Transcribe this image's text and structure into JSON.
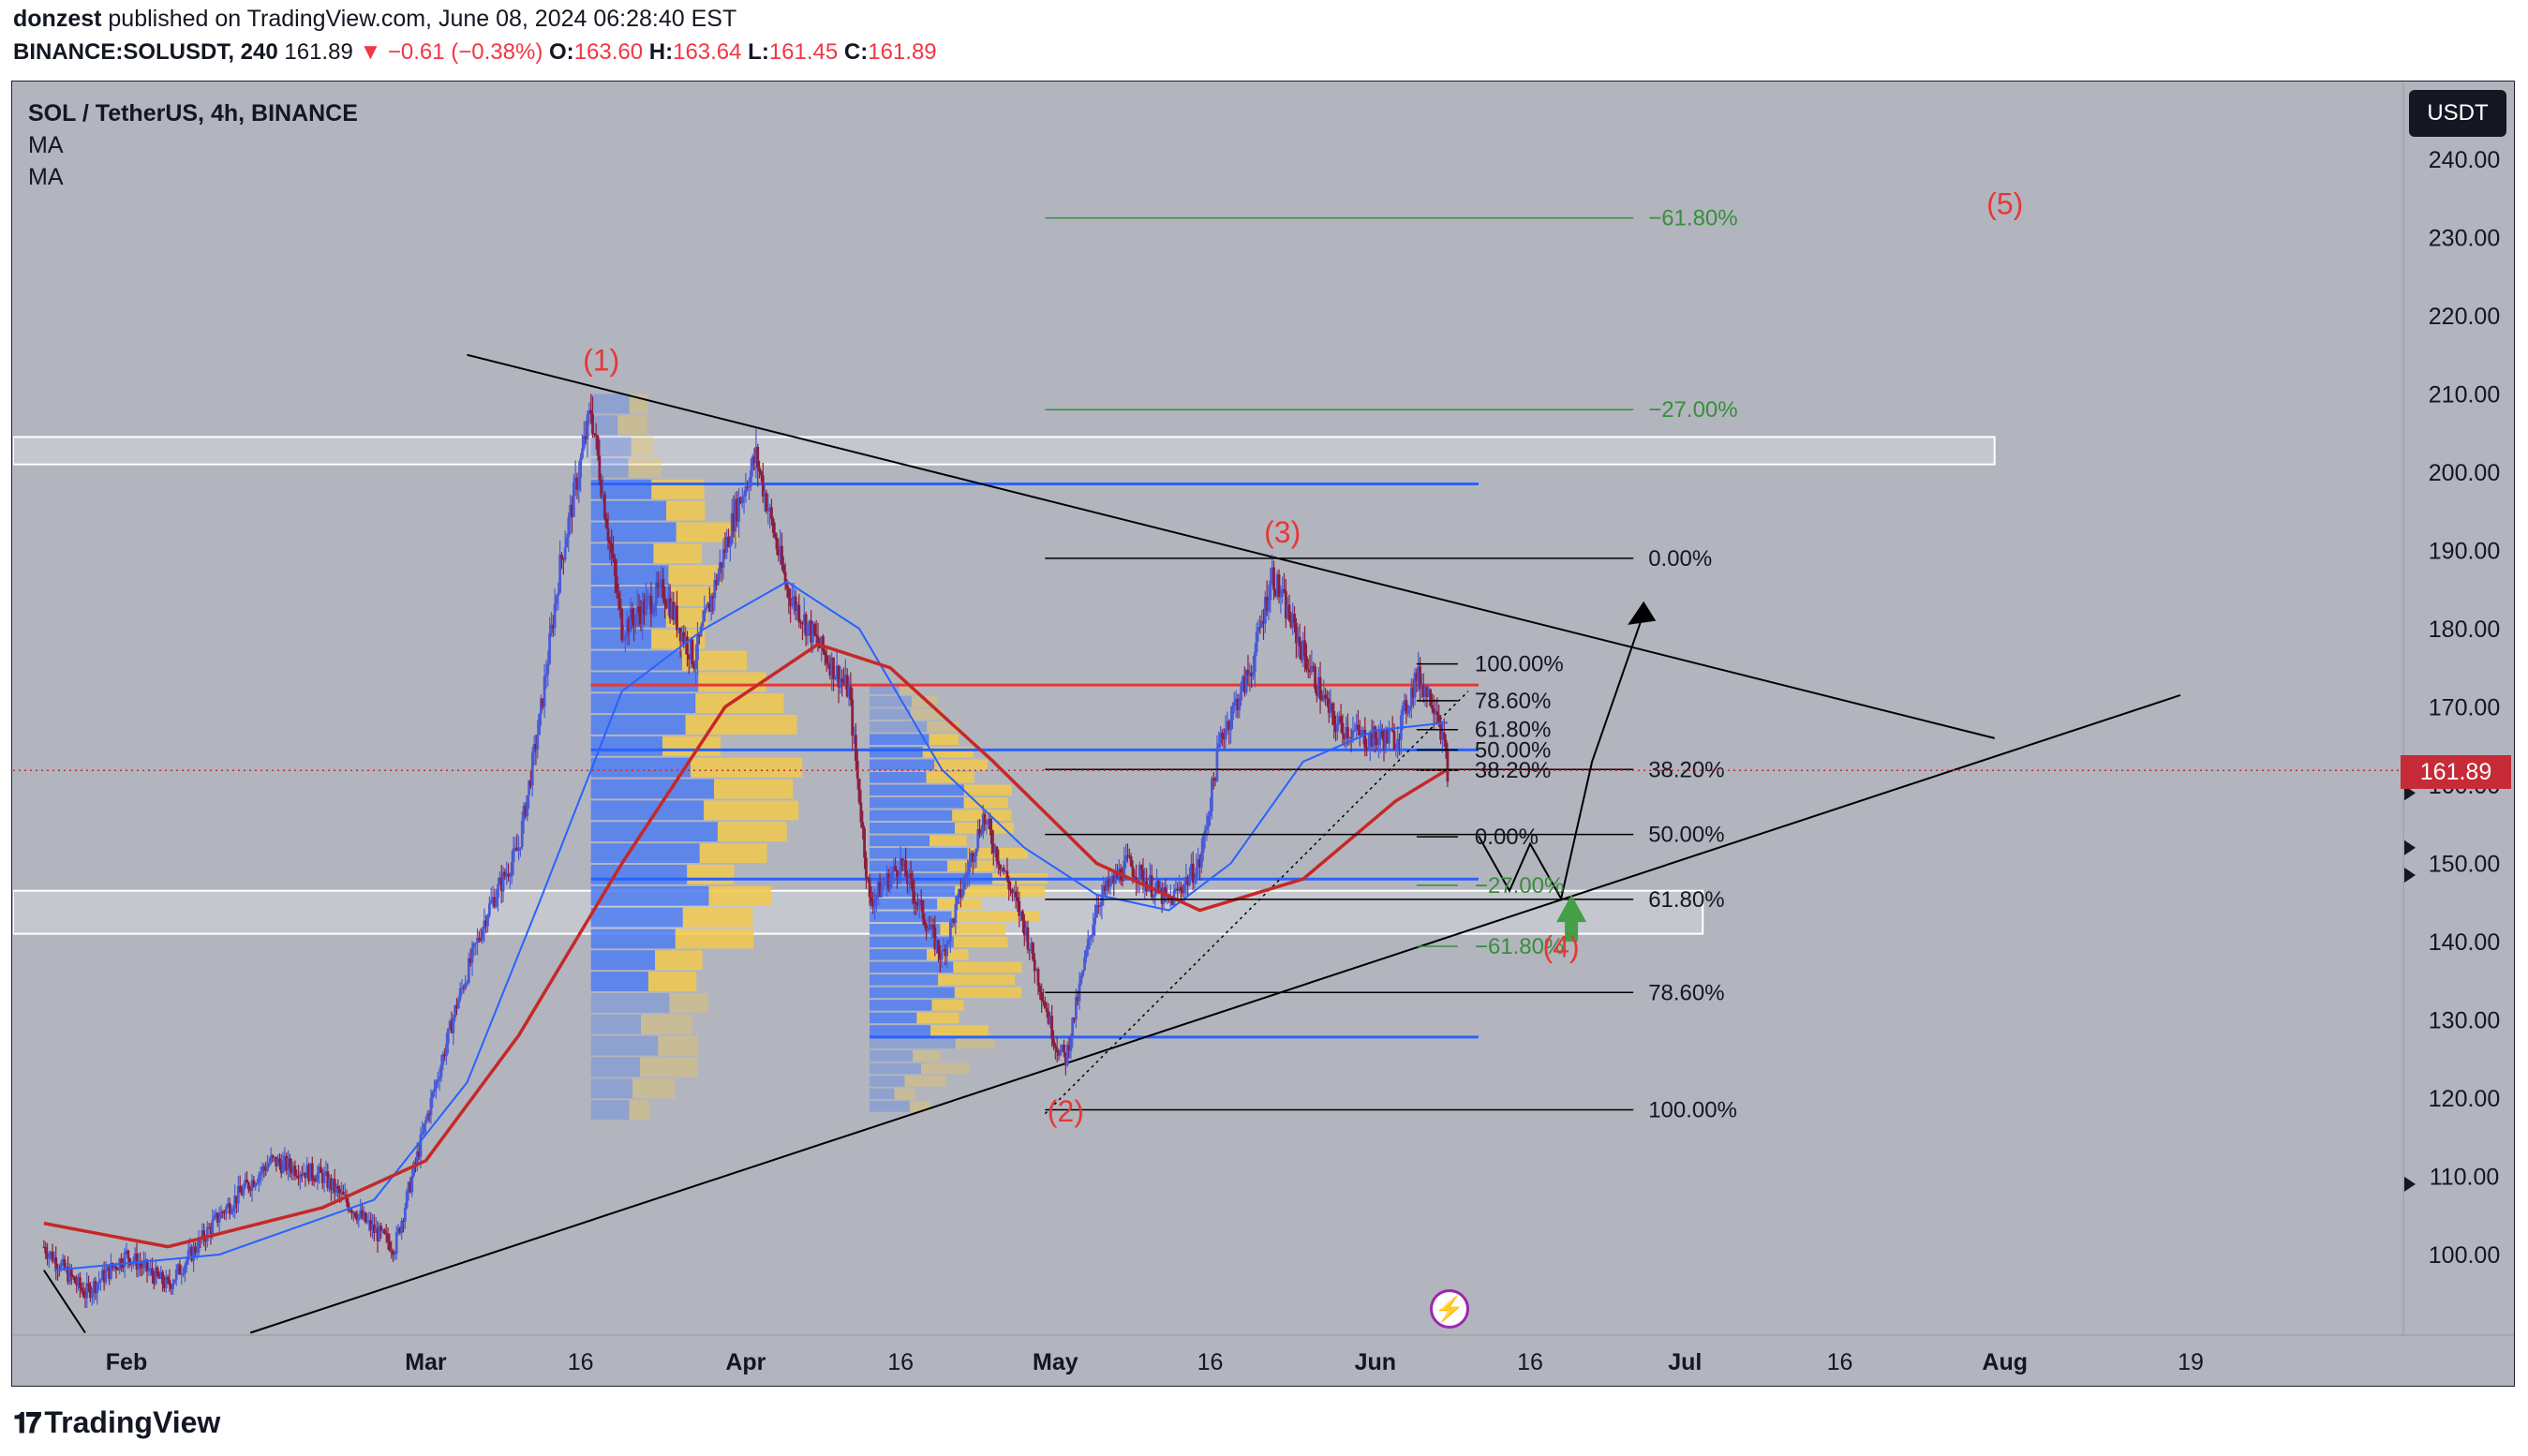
{
  "header": {
    "publisher": "donzest",
    "published_text": "published on TradingView.com, June 08, 2024 06:28:40 EST",
    "symbol_line_prefix": "BINANCE:SOLUSDT, 240",
    "last": "161.89",
    "change": "▼ −0.61 (−0.38%)",
    "o_label": "O:",
    "o_val": "163.60",
    "h_label": "H:",
    "h_val": "163.64",
    "l_label": "L:",
    "l_val": "161.45",
    "c_label": "C:",
    "c_val": "161.89"
  },
  "legend": {
    "title": "SOL / TetherUS, 4h, BINANCE",
    "indicators": [
      "MA",
      "MA"
    ]
  },
  "currency_button": "USDT",
  "current_price_label": "161.89",
  "footer": {
    "brand": "TradingView"
  },
  "colors": {
    "background": "#b2b5be",
    "candle_up": "#4a5bd6",
    "candle_down": "#8b1e3f",
    "ma_fast": "#2962ff",
    "ma_slow": "#c62828",
    "vp_blue": "#4d7cf2",
    "vp_yellow": "#f2c94c",
    "wave_label": "#e53935",
    "fib_green": "#388e3c",
    "trendline": "#000000",
    "current_price": "#c62b37"
  },
  "chart_data": {
    "type": "candlestick",
    "symbol": "SOL / TetherUS",
    "interval": "4h",
    "exchange": "BINANCE",
    "y_axis": {
      "ticks": [
        "100.00",
        "110.00",
        "120.00",
        "130.00",
        "140.00",
        "150.00",
        "160.00",
        "170.00",
        "180.00",
        "190.00",
        "200.00",
        "210.00",
        "220.00",
        "230.00",
        "240.00"
      ],
      "range": [
        90,
        246
      ]
    },
    "x_axis": {
      "ticks": [
        {
          "label": "Feb",
          "date": "2024-02-01"
        },
        {
          "label": "Mar",
          "date": "2024-03-01"
        },
        {
          "label": "16",
          "date": "2024-03-16"
        },
        {
          "label": "Apr",
          "date": "2024-04-01"
        },
        {
          "label": "16",
          "date": "2024-04-16"
        },
        {
          "label": "May",
          "date": "2024-05-01"
        },
        {
          "label": "16",
          "date": "2024-05-16"
        },
        {
          "label": "Jun",
          "date": "2024-06-01"
        },
        {
          "label": "16",
          "date": "2024-06-16"
        },
        {
          "label": "Jul",
          "date": "2024-07-01"
        },
        {
          "label": "16",
          "date": "2024-07-16"
        },
        {
          "label": "Aug",
          "date": "2024-08-01"
        },
        {
          "label": "19",
          "date": "2024-08-19"
        }
      ]
    },
    "price_path": [
      [
        "2024-01-24",
        101
      ],
      [
        "2024-01-28",
        95
      ],
      [
        "2024-02-01",
        100
      ],
      [
        "2024-02-05",
        96
      ],
      [
        "2024-02-10",
        105
      ],
      [
        "2024-02-15",
        112
      ],
      [
        "2024-02-20",
        110
      ],
      [
        "2024-02-25",
        103
      ],
      [
        "2024-02-27",
        101
      ],
      [
        "2024-03-01",
        117
      ],
      [
        "2024-03-04",
        132
      ],
      [
        "2024-03-07",
        144
      ],
      [
        "2024-03-10",
        152
      ],
      [
        "2024-03-12",
        168
      ],
      [
        "2024-03-14",
        188
      ],
      [
        "2024-03-17",
        208
      ],
      [
        "2024-03-20",
        180
      ],
      [
        "2024-03-24",
        185
      ],
      [
        "2024-03-27",
        176
      ],
      [
        "2024-03-31",
        195
      ],
      [
        "2024-04-02",
        202
      ],
      [
        "2024-04-05",
        185
      ],
      [
        "2024-04-08",
        178
      ],
      [
        "2024-04-11",
        172
      ],
      [
        "2024-04-13",
        145
      ],
      [
        "2024-04-16",
        150
      ],
      [
        "2024-04-20",
        138
      ],
      [
        "2024-04-24",
        156
      ],
      [
        "2024-04-28",
        142
      ],
      [
        "2024-05-01",
        127
      ],
      [
        "2024-05-02",
        125
      ],
      [
        "2024-05-05",
        145
      ],
      [
        "2024-05-08",
        150
      ],
      [
        "2024-05-12",
        145
      ],
      [
        "2024-05-15",
        150
      ],
      [
        "2024-05-17",
        166
      ],
      [
        "2024-05-20",
        175
      ],
      [
        "2024-05-22",
        187
      ],
      [
        "2024-05-25",
        177
      ],
      [
        "2024-05-28",
        168
      ],
      [
        "2024-05-31",
        166
      ],
      [
        "2024-06-03",
        166
      ],
      [
        "2024-06-05",
        174
      ],
      [
        "2024-06-07",
        170
      ],
      [
        "2024-06-08",
        162
      ]
    ],
    "series": [
      {
        "type": "moving_average",
        "values": [
          [
            "2024-01-25",
            98
          ],
          [
            "2024-02-10",
            100
          ],
          [
            "2024-02-25",
            107
          ],
          [
            "2024-03-05",
            122
          ],
          [
            "2024-03-12",
            145
          ],
          [
            "2024-03-20",
            172
          ],
          [
            "2024-03-28",
            180
          ],
          [
            "2024-04-05",
            186
          ],
          [
            "2024-04-12",
            180
          ],
          [
            "2024-04-20",
            162
          ],
          [
            "2024-04-28",
            152
          ],
          [
            "2024-05-05",
            146
          ],
          [
            "2024-05-12",
            144
          ],
          [
            "2024-05-18",
            150
          ],
          [
            "2024-05-25",
            163
          ],
          [
            "2024-06-01",
            167
          ],
          [
            "2024-06-08",
            168
          ]
        ]
      },
      {
        "type": "moving_average",
        "values": [
          [
            "2024-01-24",
            104
          ],
          [
            "2024-02-05",
            101
          ],
          [
            "2024-02-20",
            106
          ],
          [
            "2024-03-01",
            112
          ],
          [
            "2024-03-10",
            128
          ],
          [
            "2024-03-20",
            150
          ],
          [
            "2024-03-30",
            170
          ],
          [
            "2024-04-08",
            178
          ],
          [
            "2024-04-15",
            175
          ],
          [
            "2024-04-25",
            163
          ],
          [
            "2024-05-05",
            150
          ],
          [
            "2024-05-15",
            144
          ],
          [
            "2024-05-25",
            148
          ],
          [
            "2024-06-03",
            158
          ],
          [
            "2024-06-08",
            162
          ]
        ]
      }
    ],
    "annotations": {
      "wave_labels": [
        {
          "text": "(1)",
          "date": "2024-03-18",
          "price": 213
        },
        {
          "text": "(2)",
          "date": "2024-05-02",
          "price": 117
        },
        {
          "text": "(3)",
          "date": "2024-05-23",
          "price": 191
        },
        {
          "text": "(4)",
          "date": "2024-06-19",
          "price": 138
        },
        {
          "text": "(5)",
          "date": "2024-08-01",
          "price": 233
        }
      ],
      "fib_main": [
        {
          "label": "0.00%",
          "price": 189.0
        },
        {
          "label": "38.20%",
          "price": 162.0
        },
        {
          "label": "50.00%",
          "price": 153.7
        },
        {
          "label": "61.80%",
          "price": 145.4
        },
        {
          "label": "78.60%",
          "price": 133.5
        },
        {
          "label": "100.00%",
          "price": 118.5
        }
      ],
      "fib_ext": [
        {
          "label": "−61.80%",
          "price": 232.5
        },
        {
          "label": "−27.00%",
          "price": 208.0
        }
      ],
      "fib_local": [
        {
          "label": "100.00%",
          "price": 175.5
        },
        {
          "label": "78.60%",
          "price": 170.8
        },
        {
          "label": "61.80%",
          "price": 167.1
        },
        {
          "label": "50.00%",
          "price": 164.5
        },
        {
          "label": "38.20%",
          "price": 161.9
        },
        {
          "label": "0.00%",
          "price": 153.4
        }
      ],
      "fib_local_ext": [
        {
          "label": "−27.00%",
          "price": 147.2
        },
        {
          "label": "−61.80%",
          "price": 139.4
        }
      ],
      "horizontal_levels": [
        {
          "price": 198.5,
          "color": "blue"
        },
        {
          "price": 172.8,
          "color": "red"
        },
        {
          "price": 164.5,
          "color": "blue"
        },
        {
          "price": 148.0,
          "color": "blue"
        },
        {
          "price": 127.8,
          "color": "blue"
        }
      ],
      "zones": [
        {
          "from": 201,
          "to": 204.5
        },
        {
          "from": 141,
          "to": 146.5
        }
      ],
      "current_price": 161.89
    }
  }
}
